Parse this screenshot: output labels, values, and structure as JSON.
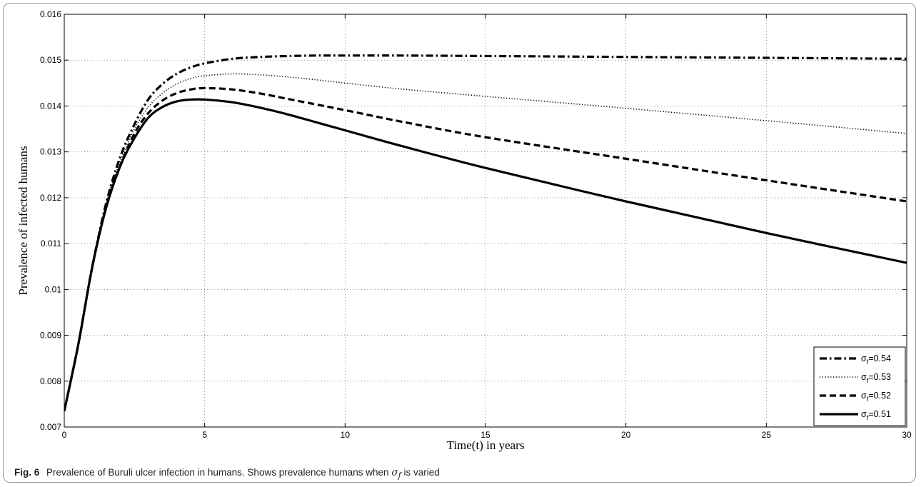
{
  "caption": {
    "label": "Fig. 6",
    "text_before": "Prevalence of Buruli ulcer infection in humans. Shows prevalence humans when",
    "symbol": "σ",
    "symbol_sub": "f",
    "text_after": "is varied"
  },
  "chart_data": {
    "type": "line",
    "title": "",
    "xlabel": "Time(t) in years",
    "ylabel": "Prevalence of infected humans",
    "xlim": [
      0,
      30
    ],
    "ylim": [
      0.007,
      0.016
    ],
    "xticks": [
      0,
      5,
      10,
      15,
      20,
      25,
      30
    ],
    "xtick_labels": [
      "0",
      "5",
      "10",
      "15",
      "20",
      "25",
      "30"
    ],
    "yticks": [
      0.007,
      0.008,
      0.009,
      0.01,
      0.011,
      0.012,
      0.013,
      0.014,
      0.015,
      0.016
    ],
    "ytick_labels": [
      "0.007",
      "0.008",
      "0.009",
      "0.01",
      "0.011",
      "0.012",
      "0.013",
      "0.014",
      "0.015",
      "0.016"
    ],
    "grid": true,
    "legend_position": "bottom-right",
    "series": [
      {
        "name": "σf=0.54",
        "symbol": "σ",
        "subscript": "f",
        "value_text": "=0.54",
        "line_style": "dashdot",
        "color": "#000000",
        "x": [
          0,
          0.5,
          1,
          1.5,
          2,
          2.5,
          3,
          3.5,
          4,
          4.5,
          5,
          6,
          7,
          8,
          9,
          10,
          12,
          15,
          20,
          25,
          30
        ],
        "y": [
          0.00735,
          0.0088,
          0.0105,
          0.0119,
          0.0129,
          0.0136,
          0.01415,
          0.01448,
          0.0147,
          0.01484,
          0.01493,
          0.01503,
          0.01507,
          0.01509,
          0.0151,
          0.0151,
          0.0151,
          0.01509,
          0.01507,
          0.01505,
          0.01503
        ]
      },
      {
        "name": "σf=0.53",
        "symbol": "σ",
        "subscript": "f",
        "value_text": "=0.53",
        "line_style": "dotted",
        "color": "#000000",
        "x": [
          0,
          0.5,
          1,
          1.5,
          2,
          2.5,
          3,
          3.5,
          4,
          4.5,
          5,
          6,
          7,
          8,
          9,
          10,
          12,
          15,
          20,
          25,
          30
        ],
        "y": [
          0.00735,
          0.0088,
          0.0105,
          0.0119,
          0.0128,
          0.0135,
          0.01398,
          0.01428,
          0.01448,
          0.0146,
          0.01466,
          0.0147,
          0.01468,
          0.01463,
          0.01457,
          0.0145,
          0.01437,
          0.01421,
          0.01395,
          0.01368,
          0.0134
        ]
      },
      {
        "name": "σf=0.52",
        "symbol": "σ",
        "subscript": "f",
        "value_text": "=0.52",
        "line_style": "dashed",
        "color": "#000000",
        "x": [
          0,
          0.5,
          1,
          1.5,
          2,
          2.5,
          3,
          3.5,
          4,
          4.5,
          5,
          6,
          7,
          8,
          9,
          10,
          12,
          15,
          20,
          25,
          30
        ],
        "y": [
          0.00735,
          0.0088,
          0.0105,
          0.0118,
          0.0127,
          0.0134,
          0.01385,
          0.01412,
          0.01428,
          0.01436,
          0.01439,
          0.01436,
          0.01427,
          0.01415,
          0.01403,
          0.01391,
          0.01366,
          0.01332,
          0.01285,
          0.01238,
          0.01192
        ]
      },
      {
        "name": "σf=0.51",
        "symbol": "σ",
        "subscript": "f",
        "value_text": "=0.51",
        "line_style": "solid",
        "color": "#000000",
        "x": [
          0,
          0.5,
          1,
          1.5,
          2,
          2.5,
          3,
          3.5,
          4,
          4.5,
          5,
          6,
          7,
          8,
          9,
          10,
          12,
          15,
          20,
          25,
          30
        ],
        "y": [
          0.00735,
          0.0088,
          0.0105,
          0.0118,
          0.0127,
          0.0133,
          0.01375,
          0.01398,
          0.0141,
          0.01414,
          0.01414,
          0.01408,
          0.01396,
          0.01381,
          0.01364,
          0.01347,
          0.01313,
          0.01265,
          0.01192,
          0.01123,
          0.01058
        ]
      }
    ]
  }
}
